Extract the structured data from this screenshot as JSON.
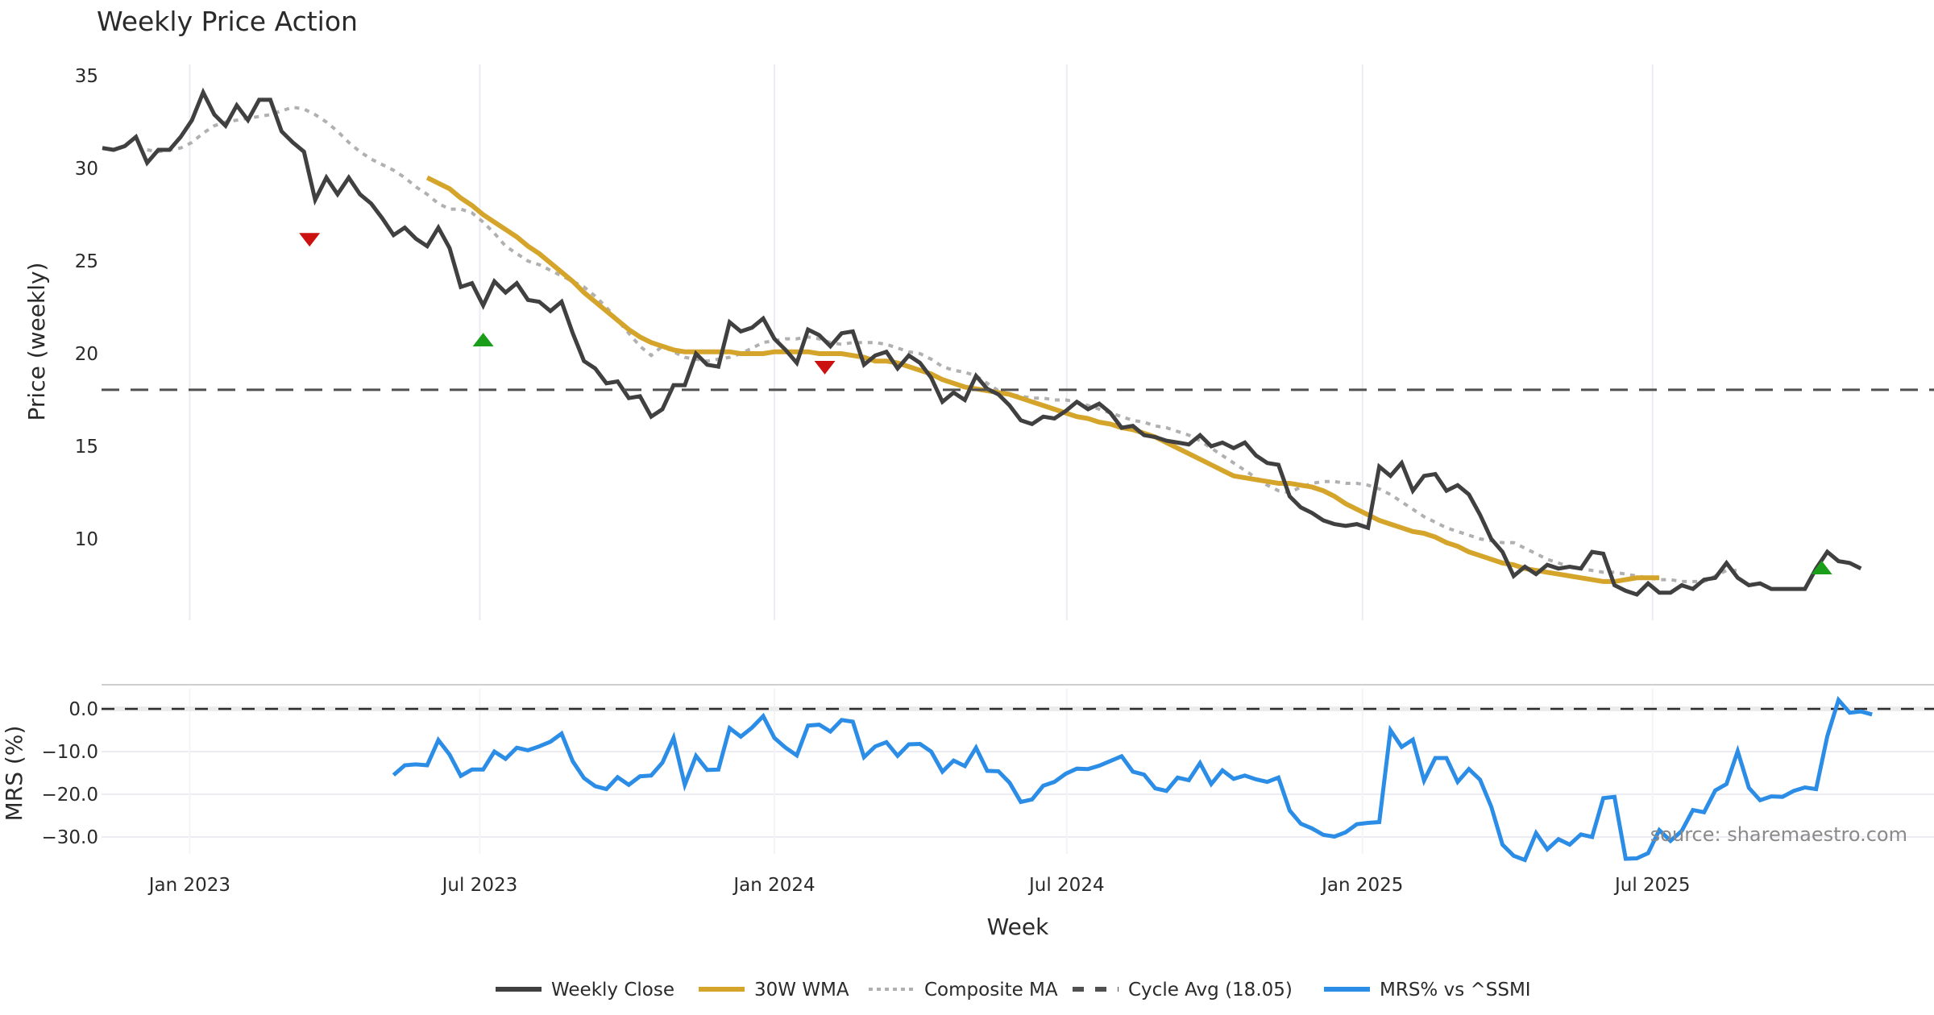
{
  "chart_data": [
    {
      "type": "line",
      "panel": "price",
      "title": "Weekly Price Action",
      "ylabel": "Price (weekly)",
      "xlabel": "Week",
      "ylim": [
        5.5,
        36
      ],
      "yticks": [
        10,
        15,
        20,
        25,
        30,
        35
      ],
      "x_start_week": "2022-11-07",
      "xticks": [
        {
          "label": "Jan 2023",
          "week": 7.8
        },
        {
          "label": "Jul 2023",
          "week": 33.7
        },
        {
          "label": "Jan 2024",
          "week": 60.0
        },
        {
          "label": "Jul 2024",
          "week": 86.1
        },
        {
          "label": "Jan 2025",
          "week": 112.5
        },
        {
          "label": "Jul 2025",
          "week": 138.4
        }
      ],
      "grid": true,
      "series": [
        {
          "name": "Weekly Close",
          "color": "#404040",
          "style": "solid",
          "start_week": 0,
          "values": [
            31.1,
            31.0,
            31.2,
            31.7,
            30.3,
            31.0,
            31.0,
            31.7,
            32.6,
            34.1,
            32.9,
            32.3,
            33.4,
            32.6,
            33.7,
            33.7,
            32.0,
            31.4,
            30.9,
            28.3,
            29.5,
            28.6,
            29.5,
            28.6,
            28.1,
            27.3,
            26.4,
            26.8,
            26.2,
            25.8,
            26.8,
            25.7,
            23.6,
            23.8,
            22.6,
            23.9,
            23.3,
            23.8,
            22.9,
            22.8,
            22.3,
            22.8,
            21.1,
            19.6,
            19.2,
            18.4,
            18.5,
            17.6,
            17.7,
            16.6,
            17.0,
            18.3,
            18.3,
            20.0,
            19.4,
            19.3,
            21.7,
            21.2,
            21.4,
            21.9,
            20.8,
            20.2,
            19.5,
            21.3,
            21.0,
            20.4,
            21.1,
            21.2,
            19.4,
            19.9,
            20.1,
            19.2,
            19.9,
            19.5,
            18.7,
            17.4,
            17.9,
            17.5,
            18.8,
            18.1,
            17.8,
            17.2,
            16.4,
            16.2,
            16.6,
            16.5,
            16.9,
            17.4,
            17.0,
            17.3,
            16.8,
            16.0,
            16.1,
            15.6,
            15.5,
            15.3,
            15.2,
            15.1,
            15.6,
            15.0,
            15.2,
            14.9,
            15.2,
            14.5,
            14.1,
            14.0,
            12.3,
            11.7,
            11.4,
            11.0,
            10.8,
            10.7,
            10.8,
            10.6,
            13.9,
            13.4,
            14.1,
            12.6,
            13.4,
            13.5,
            12.6,
            12.9,
            12.4,
            11.3,
            10.0,
            9.3,
            8.0,
            8.5,
            8.1,
            8.6,
            8.4,
            8.5,
            8.4,
            9.3,
            9.2,
            7.5,
            7.2,
            7.0,
            7.6,
            7.1,
            7.1,
            7.5,
            7.3,
            7.8,
            7.9,
            8.7,
            7.9,
            7.5,
            7.6,
            7.3,
            7.3,
            7.3,
            7.3,
            8.4,
            9.3,
            8.8,
            8.7,
            8.4
          ]
        },
        {
          "name": "30W WMA",
          "color": "#d4a52a",
          "style": "solid",
          "start_week": 29,
          "values": [
            29.5,
            29.2,
            28.9,
            28.4,
            28.0,
            27.5,
            27.1,
            26.7,
            26.3,
            25.8,
            25.4,
            24.9,
            24.4,
            23.9,
            23.3,
            22.8,
            22.3,
            21.8,
            21.3,
            20.9,
            20.6,
            20.4,
            20.2,
            20.1,
            20.1,
            20.1,
            20.1,
            20.1,
            20.0,
            20.0,
            20.0,
            20.1,
            20.1,
            20.1,
            20.1,
            20.0,
            20.0,
            20.0,
            19.9,
            19.8,
            19.6,
            19.6,
            19.5,
            19.3,
            19.1,
            18.9,
            18.6,
            18.4,
            18.2,
            18.1,
            18.0,
            17.9,
            17.8,
            17.6,
            17.4,
            17.2,
            17.0,
            16.8,
            16.6,
            16.5,
            16.3,
            16.2,
            16.0,
            15.9,
            15.7,
            15.5,
            15.2,
            14.9,
            14.6,
            14.3,
            14.0,
            13.7,
            13.4,
            13.3,
            13.2,
            13.1,
            13.0,
            13.0,
            12.9,
            12.8,
            12.6,
            12.3,
            11.9,
            11.6,
            11.3,
            11.0,
            10.8,
            10.6,
            10.4,
            10.3,
            10.1,
            9.8,
            9.6,
            9.3,
            9.1,
            8.9,
            8.7,
            8.6,
            8.4,
            8.3,
            8.2,
            8.1,
            8.0,
            7.9,
            7.8,
            7.7,
            7.7,
            7.8,
            7.9,
            7.9,
            7.9
          ]
        },
        {
          "name": "Composite MA",
          "color": "#b0b0b0",
          "style": "dotted",
          "start_week": 4,
          "values": [
            31.0,
            30.9,
            31.0,
            31.1,
            31.4,
            31.9,
            32.3,
            32.5,
            32.6,
            32.7,
            32.8,
            32.9,
            33.1,
            33.3,
            33.2,
            32.9,
            32.5,
            32.0,
            31.4,
            30.9,
            30.5,
            30.2,
            29.9,
            29.5,
            29.0,
            28.6,
            28.1,
            27.8,
            27.8,
            27.6,
            27.1,
            26.5,
            25.8,
            25.4,
            25.0,
            24.8,
            24.5,
            24.2,
            23.9,
            23.6,
            23.1,
            22.5,
            21.8,
            21.1,
            20.4,
            19.9,
            20.4,
            20.1,
            19.8,
            19.7,
            19.6,
            19.7,
            19.8,
            20.0,
            20.3,
            20.6,
            20.7,
            20.8,
            20.8,
            20.9,
            20.8,
            20.6,
            20.5,
            20.6,
            20.6,
            20.6,
            20.5,
            20.3,
            20.1,
            20.0,
            19.7,
            19.3,
            19.1,
            19.0,
            18.8,
            18.4,
            18.0,
            17.8,
            17.7,
            17.6,
            17.6,
            17.5,
            17.5,
            17.4,
            17.2,
            17.0,
            16.8,
            16.6,
            16.4,
            16.3,
            16.1,
            16.0,
            15.8,
            15.6,
            15.3,
            14.9,
            14.5,
            14.1,
            13.7,
            13.3,
            12.9,
            12.6,
            12.5,
            12.8,
            13.0,
            13.1,
            13.1,
            13.0,
            13.0,
            12.9,
            12.7,
            12.4,
            12.0,
            11.6,
            11.2,
            10.9,
            10.6,
            10.4,
            10.2,
            10.0,
            9.9,
            9.8,
            9.8,
            9.5,
            9.2,
            8.9,
            8.7,
            8.5,
            8.4,
            8.3,
            8.2,
            8.2,
            8.1,
            8.0,
            7.9,
            7.8,
            7.8,
            7.7,
            7.7,
            7.7,
            8.0,
            8.3,
            8.3
          ]
        },
        {
          "name": "Cycle Avg (18.05)",
          "color": "#505050",
          "style": "dashed",
          "constant": 18.05
        }
      ],
      "markers": [
        {
          "type": "sell",
          "shape": "triangle-down",
          "color": "#cc1111",
          "week": 18.5,
          "value": 26.2
        },
        {
          "type": "buy",
          "shape": "triangle-up",
          "color": "#1a9e1a",
          "week": 34.0,
          "value": 20.7
        },
        {
          "type": "sell",
          "shape": "triangle-down",
          "color": "#cc1111",
          "week": 64.5,
          "value": 19.3
        },
        {
          "type": "buy",
          "shape": "triangle-up",
          "color": "#1a9e1a",
          "week": 153.5,
          "value": 8.4
        }
      ]
    },
    {
      "type": "line",
      "panel": "mrs",
      "ylabel": "MRS (%)",
      "ylim": [
        -39,
        5
      ],
      "yticks": [
        0.0,
        -10.0,
        -20.0,
        -30.0
      ],
      "zero_line": true,
      "series": [
        {
          "name": "MRS% vs ^SSMI",
          "color": "#2b8de6",
          "style": "solid",
          "start_week": 26,
          "values": [
            -15.5,
            -13.2,
            -13.0,
            -13.2,
            -7.3,
            -10.7,
            -15.7,
            -14.2,
            -14.2,
            -10.0,
            -11.7,
            -9.1,
            -9.7,
            -8.8,
            -7.7,
            -5.8,
            -12.3,
            -16.2,
            -18.1,
            -18.8,
            -16.0,
            -17.8,
            -15.8,
            -15.6,
            -12.6,
            -6.8,
            -17.8,
            -11.0,
            -14.3,
            -14.2,
            -4.5,
            -6.5,
            -4.4,
            -1.7,
            -6.8,
            -9.1,
            -10.9,
            -3.9,
            -3.7,
            -5.3,
            -2.6,
            -3.0,
            -11.3,
            -8.8,
            -7.8,
            -11.0,
            -8.3,
            -8.2,
            -10.0,
            -14.7,
            -12.1,
            -13.4,
            -9.1,
            -14.5,
            -14.6,
            -17.3,
            -21.8,
            -21.2,
            -18.0,
            -17.1,
            -15.2,
            -14.0,
            -14.1,
            -13.3,
            -12.2,
            -11.1,
            -14.7,
            -15.4,
            -18.6,
            -19.2,
            -16.1,
            -16.7,
            -12.7,
            -17.6,
            -14.4,
            -16.4,
            -15.6,
            -16.5,
            -17.1,
            -16.1,
            -23.8,
            -26.9,
            -28.0,
            -29.5,
            -29.9,
            -28.9,
            -27.0,
            -26.7,
            -26.5,
            -5.0,
            -8.9,
            -7.2,
            -16.8,
            -11.5,
            -11.5,
            -17.1,
            -14.1,
            -16.6,
            -22.9,
            -31.8,
            -34.4,
            -35.4,
            -29.1,
            -32.9,
            -30.5,
            -31.8,
            -29.4,
            -30.0,
            -20.9,
            -20.6,
            -35.1,
            -35.0,
            -33.8,
            -28.4,
            -30.9,
            -28.6,
            -23.7,
            -24.2,
            -19.1,
            -17.6,
            -9.9,
            -18.5,
            -21.4,
            -20.5,
            -20.6,
            -19.2,
            -18.4,
            -18.8,
            -6.4,
            2.1,
            -0.9,
            -0.6,
            -1.3
          ]
        }
      ]
    }
  ],
  "legend": {
    "position": "bottom-center",
    "items": [
      {
        "label": "Weekly Close",
        "color": "#404040",
        "style": "solid"
      },
      {
        "label": "30W WMA",
        "color": "#d4a52a",
        "style": "solid"
      },
      {
        "label": "Composite MA",
        "color": "#b0b0b0",
        "style": "dotted"
      },
      {
        "label": "Cycle Avg (18.05)",
        "color": "#505050",
        "style": "dashed"
      },
      {
        "label": "MRS% vs ^SSMI",
        "color": "#2b8de6",
        "style": "solid"
      }
    ]
  },
  "watermark": "source: sharemaestro.com"
}
